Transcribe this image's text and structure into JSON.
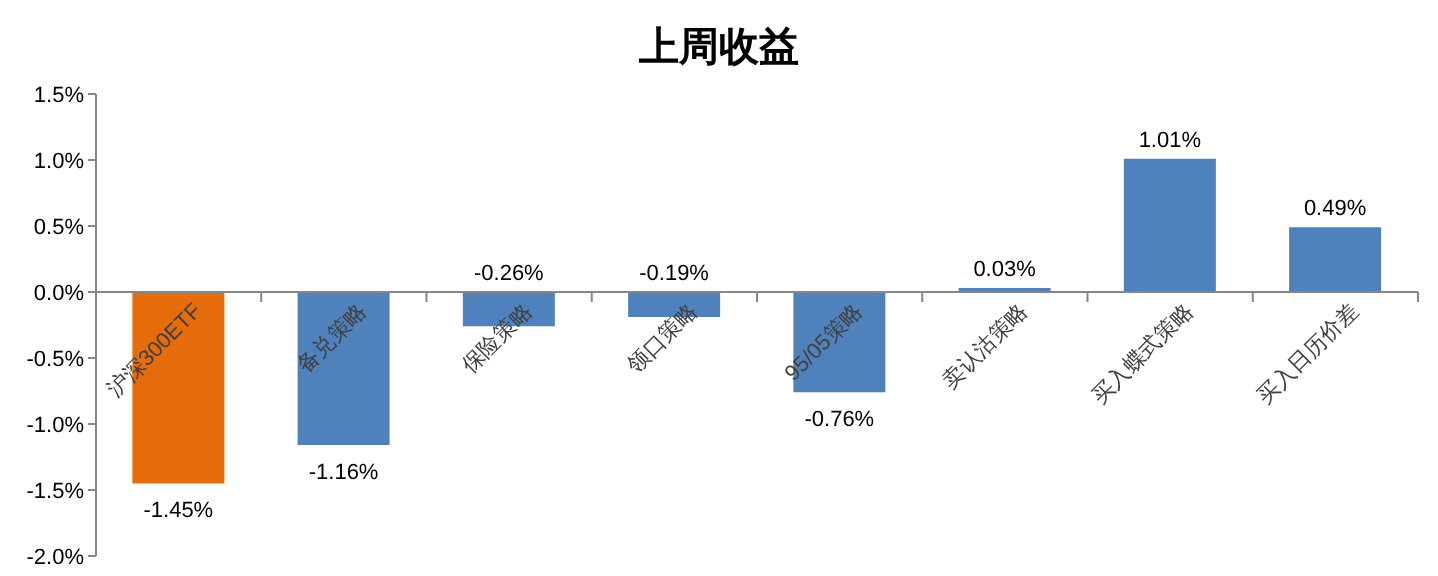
{
  "chart_data": {
    "type": "bar",
    "title": "上周收益",
    "categories": [
      "沪深300ETF",
      "备兑策略",
      "保险策略",
      "领口策略",
      "95/05策略",
      "卖认沽策略",
      "买入蝶式策略",
      "买入日历价差"
    ],
    "values": [
      -1.45,
      -1.16,
      -0.26,
      -0.19,
      -0.76,
      0.03,
      1.01,
      0.49
    ],
    "value_labels": [
      "-1.45%",
      "-1.16%",
      "-0.26%",
      "-0.19%",
      "-0.76%",
      "0.03%",
      "1.01%",
      "0.49%"
    ],
    "colors": [
      "#e46c0a",
      "#4f81bd",
      "#4f81bd",
      "#4f81bd",
      "#4f81bd",
      "#4f81bd",
      "#4f81bd",
      "#4f81bd"
    ],
    "ylim": [
      -2.0,
      1.5
    ],
    "yticks": [
      {
        "value": -2.0,
        "label": "-2.0%"
      },
      {
        "value": -1.5,
        "label": "-1.5%"
      },
      {
        "value": -1.0,
        "label": "-1.0%"
      },
      {
        "value": -0.5,
        "label": "-0.5%"
      },
      {
        "value": 0,
        "label": "0.0%"
      },
      {
        "value": 0.5,
        "label": "0.5%"
      },
      {
        "value": 1.0,
        "label": "1.0%"
      },
      {
        "value": 1.5,
        "label": "1.5%"
      }
    ],
    "grid": false,
    "legend": false
  }
}
